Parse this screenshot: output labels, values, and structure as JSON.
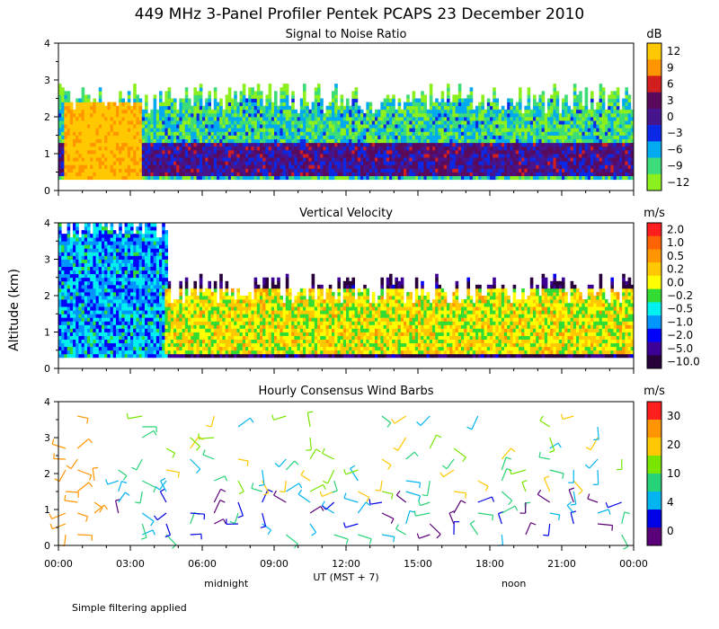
{
  "title": "449 MHz 3-Panel Profiler Pentek PCAPS 23 December 2010",
  "ylabel": "Altitude (km)",
  "footnote": "Simple filtering applied",
  "colors": {
    "axis": "#000000",
    "background": "#ffffff"
  },
  "xaxis": {
    "ticks": [
      "00:00",
      "03:00",
      "06:00",
      "09:00",
      "12:00",
      "15:00",
      "18:00",
      "21:00",
      "00:00"
    ],
    "label": "UT (MST + 7)",
    "annotations": [
      {
        "text": "midnight",
        "hour": 7
      },
      {
        "text": "noon",
        "hour": 19
      }
    ],
    "range_hours": [
      0,
      24
    ]
  },
  "chart_data": [
    {
      "type": "heatmap",
      "title": "Signal to Noise Ratio",
      "unit": "dB",
      "ylim": [
        0,
        4
      ],
      "yticks": [
        "0",
        "1",
        "2",
        "3",
        "4"
      ],
      "colorbar": {
        "labels": [
          "12",
          "9",
          "6",
          "3",
          "0",
          "−3",
          "−6",
          "−9",
          "−12"
        ],
        "colors": [
          "#ffc800",
          "#ff9600",
          "#d21e1e",
          "#5a0a5a",
          "#46148c",
          "#0a28e6",
          "#00aaf0",
          "#3cdc78",
          "#8cf01e"
        ]
      },
      "approx_layers": [
        {
          "from_hour": 0,
          "to_hour": 24,
          "bottom_km": 0.3,
          "top_km": 2.5,
          "level": "−9"
        },
        {
          "from_hour": 0,
          "to_hour": 24,
          "bottom_km": 0.4,
          "top_km": 1.3,
          "level": "0"
        },
        {
          "from_hour": 0.2,
          "to_hour": 3.5,
          "bottom_km": 0.3,
          "top_km": 2.4,
          "level": "12"
        }
      ]
    },
    {
      "type": "heatmap",
      "title": "Vertical Velocity",
      "unit": "m/s",
      "ylim": [
        0,
        4
      ],
      "yticks": [
        "0",
        "1",
        "2",
        "3",
        "4"
      ],
      "colorbar": {
        "labels": [
          "2.0",
          "1.0",
          "0.5",
          "0.2",
          "0.0",
          "−0.2",
          "−0.5",
          "−1.0",
          "−2.0",
          "−5.0",
          "−10.0"
        ],
        "colors": [
          "#ff1e1e",
          "#ff6400",
          "#ff9600",
          "#ffc800",
          "#ffff00",
          "#32dc32",
          "#00f0f0",
          "#0096ff",
          "#0000ff",
          "#3c0096",
          "#28003c"
        ]
      },
      "approx_layers": [
        {
          "from_hour": 0,
          "to_hour": 4.5,
          "bottom_km": 0.3,
          "top_km": 4.0,
          "level": "−1.0"
        },
        {
          "from_hour": 4.5,
          "to_hour": 24,
          "bottom_km": 0.4,
          "top_km": 2.2,
          "level": "0.0"
        }
      ]
    },
    {
      "type": "scatter",
      "title": "Hourly Consensus Wind Barbs",
      "unit": "m/s",
      "ylim": [
        0,
        4
      ],
      "yticks": [
        "0",
        "1",
        "2",
        "3",
        "4"
      ],
      "colorbar": {
        "labels": [
          "30",
          "20",
          "10",
          "4",
          "0"
        ],
        "colors": [
          "#ff1e1e",
          "#ff9600",
          "#ffc800",
          "#78e600",
          "#28d278",
          "#00b4f0",
          "#0000e6",
          "#5a0078"
        ]
      },
      "barb_hours": [
        0.3,
        0.8,
        1.5,
        2.5,
        3.5,
        4.5,
        5.5,
        6.5,
        7.5,
        8.5,
        9.5,
        10.5,
        11.5,
        12.5,
        13.5,
        14.5,
        15.5,
        16.5,
        17.5,
        18.5,
        19.5,
        20.5,
        21.5,
        22.5,
        23.5
      ],
      "barb_heights_km": [
        0.3,
        0.6,
        0.9,
        1.2,
        1.5,
        1.8,
        2.1,
        2.4,
        2.7,
        3.0,
        3.3,
        3.6
      ]
    }
  ]
}
